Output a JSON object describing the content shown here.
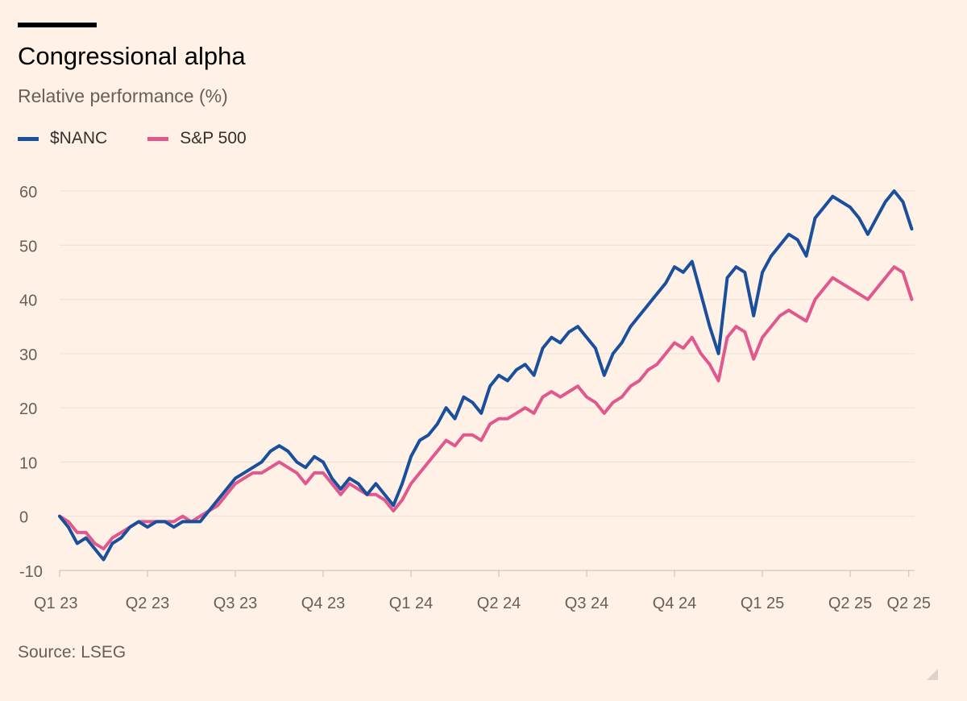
{
  "chart_data": {
    "type": "line",
    "title": "Congressional alpha",
    "subtitle": "Relative performance (%)",
    "source": "Source: LSEG",
    "xlabel": "",
    "ylabel": "",
    "ylim": [
      -10,
      60
    ],
    "yticks": [
      -10,
      0,
      10,
      20,
      30,
      40,
      50,
      60
    ],
    "xlim": [
      0,
      29.2
    ],
    "x_ticks": [
      {
        "label": "Q1 23",
        "x": 0
      },
      {
        "label": "Q2 23",
        "x": 3
      },
      {
        "label": "Q3 23",
        "x": 6
      },
      {
        "label": "Q4 23",
        "x": 9
      },
      {
        "label": "Q1 24",
        "x": 12
      },
      {
        "label": "Q2 24",
        "x": 15
      },
      {
        "label": "Q3 24",
        "x": 18
      },
      {
        "label": "Q4 24",
        "x": 21
      },
      {
        "label": "Q1 25",
        "x": 24
      },
      {
        "label": "Q2 25",
        "x": 27
      },
      {
        "label": "Q2 25",
        "x": 29
      }
    ],
    "x_unit": "months since start of Q1 23",
    "grid": true,
    "legend_position": "top-left",
    "series": [
      {
        "name": "$NANC",
        "color": "#1a4f9c",
        "x": [
          0,
          0.3,
          0.6,
          0.9,
          1.2,
          1.5,
          1.8,
          2.1,
          2.4,
          2.7,
          3.0,
          3.3,
          3.6,
          3.9,
          4.2,
          4.5,
          4.8,
          5.1,
          5.4,
          5.7,
          6.0,
          6.3,
          6.6,
          6.9,
          7.2,
          7.5,
          7.8,
          8.1,
          8.4,
          8.7,
          9.0,
          9.3,
          9.6,
          9.9,
          10.2,
          10.5,
          10.8,
          11.1,
          11.4,
          11.7,
          12.0,
          12.3,
          12.6,
          12.9,
          13.2,
          13.5,
          13.8,
          14.1,
          14.4,
          14.7,
          15.0,
          15.3,
          15.6,
          15.9,
          16.2,
          16.5,
          16.8,
          17.1,
          17.4,
          17.7,
          18.0,
          18.3,
          18.6,
          18.9,
          19.2,
          19.5,
          19.8,
          20.1,
          20.4,
          20.7,
          21.0,
          21.3,
          21.6,
          21.9,
          22.2,
          22.5,
          22.8,
          23.1,
          23.4,
          23.7,
          24.0,
          24.3,
          24.6,
          24.9,
          25.2,
          25.5,
          25.8,
          26.1,
          26.4,
          26.7,
          27.0,
          27.3,
          27.6,
          27.9,
          28.2,
          28.5,
          28.8,
          29.1
        ],
        "values": [
          0,
          -2,
          -5,
          -4,
          -6,
          -8,
          -5,
          -4,
          -2,
          -1,
          -2,
          -1,
          -1,
          -2,
          -1,
          -1,
          -1,
          1,
          3,
          5,
          7,
          8,
          9,
          10,
          12,
          13,
          12,
          10,
          9,
          11,
          10,
          7,
          5,
          7,
          6,
          4,
          6,
          4,
          2,
          6,
          11,
          14,
          15,
          17,
          20,
          18,
          22,
          21,
          19,
          24,
          26,
          25,
          27,
          28,
          26,
          31,
          33,
          32,
          34,
          35,
          33,
          31,
          26,
          30,
          32,
          35,
          37,
          39,
          41,
          43,
          46,
          45,
          47,
          41,
          35,
          30,
          44,
          46,
          45,
          37,
          45,
          48,
          50,
          52,
          51,
          48,
          55,
          57,
          59,
          58,
          57,
          55,
          52,
          55,
          58,
          60,
          58,
          53
        ]
      },
      {
        "name": "S&P 500",
        "color": "#e0588d",
        "x": [
          0,
          0.3,
          0.6,
          0.9,
          1.2,
          1.5,
          1.8,
          2.1,
          2.4,
          2.7,
          3.0,
          3.3,
          3.6,
          3.9,
          4.2,
          4.5,
          4.8,
          5.1,
          5.4,
          5.7,
          6.0,
          6.3,
          6.6,
          6.9,
          7.2,
          7.5,
          7.8,
          8.1,
          8.4,
          8.7,
          9.0,
          9.3,
          9.6,
          9.9,
          10.2,
          10.5,
          10.8,
          11.1,
          11.4,
          11.7,
          12.0,
          12.3,
          12.6,
          12.9,
          13.2,
          13.5,
          13.8,
          14.1,
          14.4,
          14.7,
          15.0,
          15.3,
          15.6,
          15.9,
          16.2,
          16.5,
          16.8,
          17.1,
          17.4,
          17.7,
          18.0,
          18.3,
          18.6,
          18.9,
          19.2,
          19.5,
          19.8,
          20.1,
          20.4,
          20.7,
          21.0,
          21.3,
          21.6,
          21.9,
          22.2,
          22.5,
          22.8,
          23.1,
          23.4,
          23.7,
          24.0,
          24.3,
          24.6,
          24.9,
          25.2,
          25.5,
          25.8,
          26.1,
          26.4,
          26.7,
          27.0,
          27.3,
          27.6,
          27.9,
          28.2,
          28.5,
          28.8,
          29.1
        ],
        "values": [
          0,
          -1,
          -3,
          -3,
          -5,
          -6,
          -4,
          -3,
          -2,
          -1,
          -1,
          -1,
          -1,
          -1,
          0,
          -1,
          0,
          1,
          2,
          4,
          6,
          7,
          8,
          8,
          9,
          10,
          9,
          8,
          6,
          8,
          8,
          6,
          4,
          6,
          5,
          4,
          4,
          3,
          1,
          3,
          6,
          8,
          10,
          12,
          14,
          13,
          15,
          15,
          14,
          17,
          18,
          18,
          19,
          20,
          19,
          22,
          23,
          22,
          23,
          24,
          22,
          21,
          19,
          21,
          22,
          24,
          25,
          27,
          28,
          30,
          32,
          31,
          33,
          30,
          28,
          25,
          33,
          35,
          34,
          29,
          33,
          35,
          37,
          38,
          37,
          36,
          40,
          42,
          44,
          43,
          42,
          41,
          40,
          42,
          44,
          46,
          45,
          40
        ]
      }
    ]
  }
}
